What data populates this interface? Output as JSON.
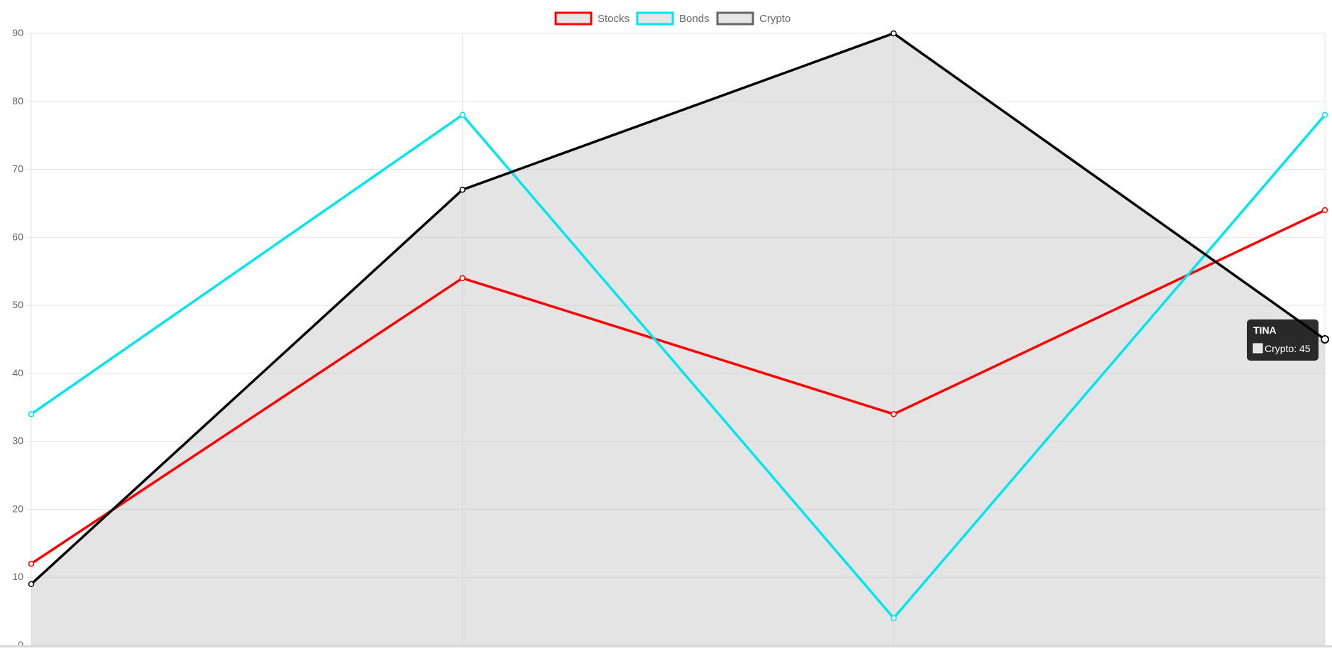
{
  "chart_data": {
    "type": "line",
    "categories": [
      "",
      "",
      "",
      ""
    ],
    "series": [
      {
        "name": "Stocks",
        "values": [
          12,
          54,
          34,
          64
        ],
        "color": "#ff0000",
        "fill": false
      },
      {
        "name": "Bonds",
        "values": [
          34,
          78,
          4,
          78
        ],
        "color": "#00e5ee",
        "fill": false
      },
      {
        "name": "Crypto",
        "values": [
          9,
          67,
          90,
          45
        ],
        "color": "#000000",
        "fill": true,
        "fill_color": "#bfbfbf"
      }
    ],
    "ylim": [
      0,
      90
    ],
    "yticks": [
      0,
      10,
      20,
      30,
      40,
      50,
      60,
      70,
      80,
      90
    ],
    "grid": true,
    "legend": "top-center",
    "legend_items": [
      {
        "label": "Stocks",
        "border_color": "#ff0000"
      },
      {
        "label": "Bonds",
        "border_color": "#00e5ee"
      },
      {
        "label": "Crypto",
        "border_color": "#666666"
      }
    ],
    "tooltip": {
      "title": "TINA",
      "text": "Crypto: 45",
      "series": "Crypto",
      "point_index": 3
    }
  }
}
